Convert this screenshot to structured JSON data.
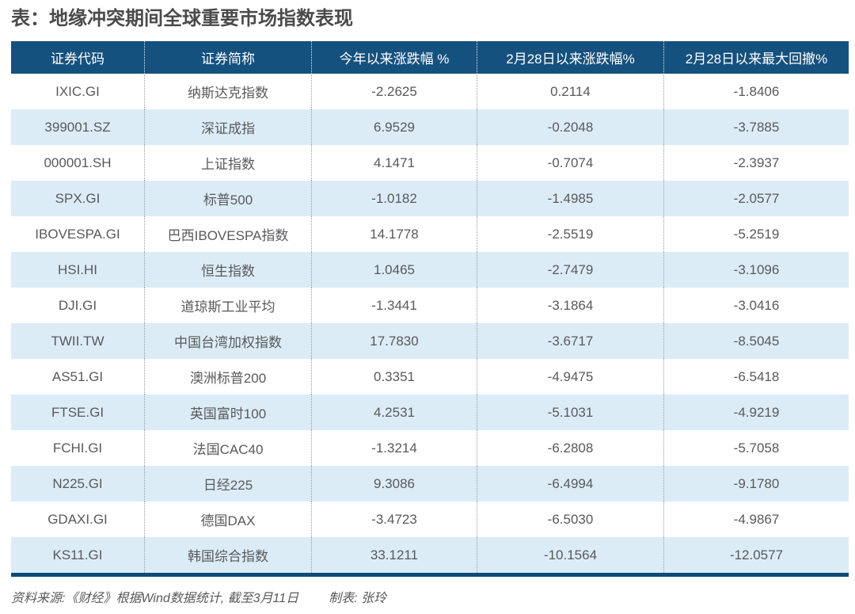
{
  "title": "表：地缘冲突期间全球重要市场指数表现",
  "colors": {
    "header_bg": "#15517E",
    "row_alt_bg": "#DCECF7",
    "bottom_border": "#0D4A77",
    "body_text": "#58595B",
    "footer_text": "#595959"
  },
  "chart_data": {
    "type": "table",
    "title": "表：地缘冲突期间全球重要市场指数表现",
    "columns": [
      "证券代码",
      "证券简称",
      "今年以来涨跌幅 %",
      "2月28日以来涨跌幅%",
      "2月28日以来最大回撤%"
    ],
    "rows": [
      [
        "IXIC.GI",
        "纳斯达克指数",
        "-2.2625",
        "0.2114",
        "-1.8406"
      ],
      [
        "399001.SZ",
        "深证成指",
        "6.9529",
        "-0.2048",
        "-3.7885"
      ],
      [
        "000001.SH",
        "上证指数",
        "4.1471",
        "-0.7074",
        "-2.3937"
      ],
      [
        "SPX.GI",
        "标普500",
        "-1.0182",
        "-1.4985",
        "-2.0577"
      ],
      [
        "IBOVESPA.GI",
        "巴西IBOVESPA指数",
        "14.1778",
        "-2.5519",
        "-5.2519"
      ],
      [
        "HSI.HI",
        "恒生指数",
        "1.0465",
        "-2.7479",
        "-3.1096"
      ],
      [
        "DJI.GI",
        "道琼斯工业平均",
        "-1.3441",
        "-3.1864",
        "-3.0416"
      ],
      [
        "TWII.TW",
        "中国台湾加权指数",
        "17.7830",
        "-3.6717",
        "-8.5045"
      ],
      [
        "AS51.GI",
        "澳洲标普200",
        "0.3351",
        "-4.9475",
        "-6.5418"
      ],
      [
        "FTSE.GI",
        "英国富时100",
        "4.2531",
        "-5.1031",
        "-4.9219"
      ],
      [
        "FCHI.GI",
        "法国CAC40",
        "-1.3214",
        "-6.2808",
        "-5.7058"
      ],
      [
        "N225.GI",
        "日经225",
        "9.3086",
        "-6.4994",
        "-9.1780"
      ],
      [
        "GDAXI.GI",
        "德国DAX",
        "-3.4723",
        "-6.5030",
        "-4.9867"
      ],
      [
        "KS11.GI",
        "韩国综合指数",
        "33.1211",
        "-10.1564",
        "-12.0577"
      ]
    ]
  },
  "footer": {
    "source": "资料来源:《财经》根据Wind数据统计, 截至3月11日",
    "credit": "制表: 张玲"
  }
}
